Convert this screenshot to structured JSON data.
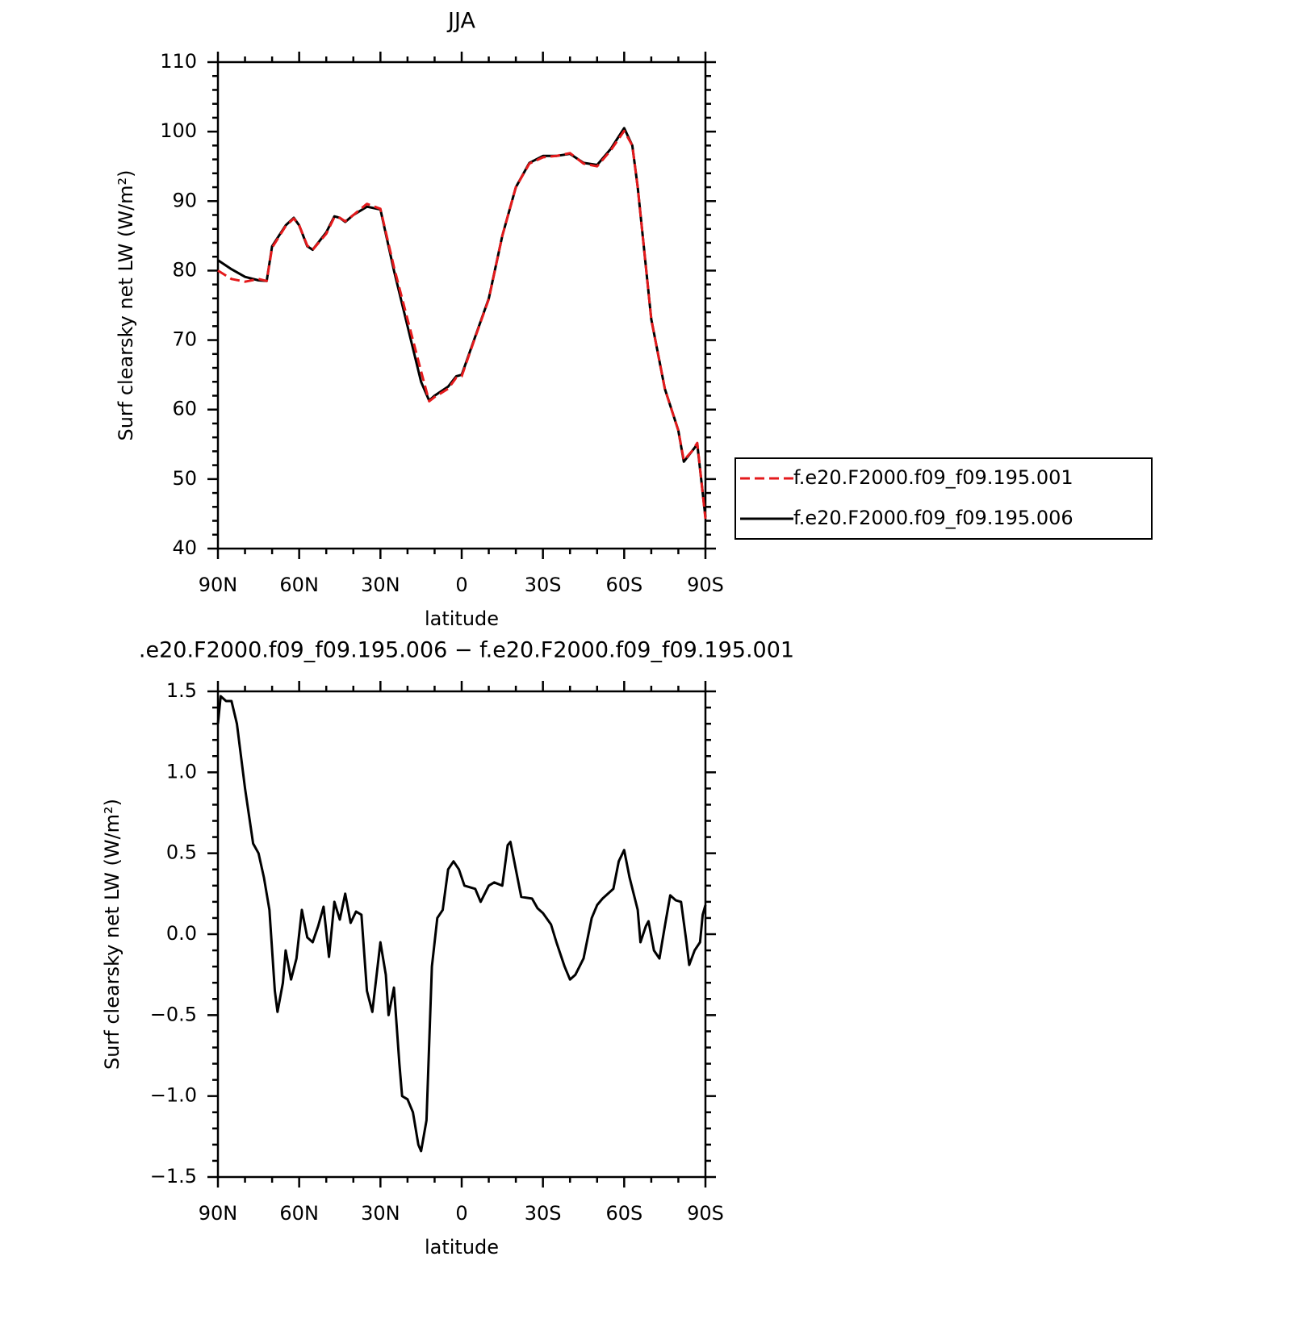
{
  "chart_data": [
    {
      "type": "line",
      "title": "JJA",
      "x_label": "latitude",
      "y_label": "Surf clearsky net LW (W/m²)",
      "x": [
        90,
        85,
        80,
        75,
        72,
        70,
        65,
        62,
        60,
        57,
        55,
        50,
        47,
        45,
        43,
        40,
        35,
        30,
        25,
        20,
        15,
        12,
        10,
        5,
        2,
        0,
        -5,
        -10,
        -15,
        -20,
        -25,
        -30,
        -35,
        -40,
        -45,
        -50,
        -55,
        -60,
        -63,
        -65,
        -70,
        -75,
        -80,
        -82,
        -85,
        -87,
        -90
      ],
      "series": [
        {
          "name": "f.e20.F2000.f09_f09.195.001",
          "color": "#e41a1c",
          "dash": true,
          "values": [
            80,
            78.8,
            78.4,
            78.8,
            78.5,
            83.3,
            86.4,
            87.5,
            86.5,
            83.6,
            83,
            85.3,
            87.7,
            87.6,
            87.1,
            88,
            89.6,
            88.9,
            80.5,
            73,
            65.5,
            61.2,
            61.8,
            63,
            64.6,
            64.8,
            70.4,
            75.9,
            85,
            92,
            95.4,
            96.3,
            96.5,
            96.9,
            95.4,
            95,
            97.3,
            100.1,
            98,
            92,
            73,
            63,
            57,
            52.7,
            54,
            55.2,
            44.3
          ]
        },
        {
          "name": "f.e20.F2000.f09_f09.195.006",
          "color": "#000000",
          "dash": false,
          "values": [
            81.5,
            80.2,
            79.1,
            78.6,
            78.5,
            83.5,
            86.5,
            87.6,
            86.5,
            83.5,
            83,
            85.5,
            87.8,
            87.6,
            87,
            88,
            89.2,
            88.8,
            80,
            72,
            64,
            61.3,
            62,
            63.3,
            64.8,
            65,
            70.5,
            76,
            85,
            92,
            95.5,
            96.5,
            96.5,
            96.8,
            95.5,
            95.2,
            97.5,
            100.5,
            98,
            92,
            73,
            63,
            57,
            52.5,
            54,
            55,
            44.5
          ]
        }
      ],
      "xlim": [
        90,
        -90
      ],
      "xticks": [
        {
          "value": 90,
          "label": "90N"
        },
        {
          "value": 60,
          "label": "60N"
        },
        {
          "value": 30,
          "label": "30N"
        },
        0,
        {
          "value": -30,
          "label": "30S"
        },
        {
          "value": -60,
          "label": "60S"
        },
        {
          "value": -90,
          "label": "90S"
        }
      ],
      "ylim": [
        40,
        110
      ],
      "yticks": [
        40,
        50,
        60,
        70,
        80,
        90,
        100,
        110
      ],
      "legend": "right"
    },
    {
      "type": "line",
      "title": ".e20.F2000.f09_f09.195.006 − f.e20.F2000.f09_f09.195.001",
      "x_label": "latitude",
      "y_label": "Surf clearsky net LW (W/m²)",
      "x": [
        90,
        89,
        87,
        85,
        83,
        80,
        77,
        75,
        73,
        71,
        69,
        68,
        66,
        65,
        63,
        61,
        59,
        57,
        55,
        53,
        51,
        49,
        47,
        45,
        43,
        41,
        39,
        37,
        35,
        33,
        30,
        28,
        27,
        25,
        23,
        22,
        20,
        18,
        16,
        15,
        13,
        11,
        9,
        7,
        5,
        3,
        1,
        -1,
        -5,
        -7,
        -10,
        -12,
        -15,
        -17,
        -18,
        -20,
        -22,
        -26,
        -28,
        -30,
        -33,
        -35,
        -38,
        -40,
        -42,
        -45,
        -48,
        -50,
        -52,
        -56,
        -58,
        -60,
        -62,
        -65,
        -66,
        -68,
        -69,
        -71,
        -73,
        -75,
        -77,
        -79,
        -81,
        -83,
        -84,
        -86,
        -88,
        -89,
        -90
      ],
      "values": [
        1.3,
        1.47,
        1.44,
        1.44,
        1.3,
        0.9,
        0.56,
        0.5,
        0.35,
        0.15,
        -0.35,
        -0.48,
        -0.3,
        -0.1,
        -0.28,
        -0.15,
        0.15,
        -0.02,
        -0.05,
        0.05,
        0.17,
        -0.14,
        0.2,
        0.09,
        0.25,
        0.07,
        0.14,
        0.12,
        -0.35,
        -0.48,
        -0.05,
        -0.25,
        -0.5,
        -0.33,
        -0.8,
        -1.0,
        -1.02,
        -1.1,
        -1.3,
        -1.34,
        -1.15,
        -0.2,
        0.1,
        0.15,
        0.4,
        0.45,
        0.4,
        0.3,
        0.28,
        0.2,
        0.3,
        0.32,
        0.3,
        0.55,
        0.57,
        0.4,
        0.23,
        0.22,
        0.16,
        0.13,
        0.06,
        -0.05,
        -0.2,
        -0.28,
        -0.25,
        -0.15,
        0.1,
        0.18,
        0.22,
        0.28,
        0.45,
        0.52,
        0.35,
        0.15,
        -0.05,
        0.05,
        0.08,
        -0.1,
        -0.15,
        0.05,
        0.24,
        0.21,
        0.2,
        -0.05,
        -0.19,
        -0.1,
        -0.05,
        0.12,
        0.18
      ],
      "color": "#000000",
      "xlim": [
        90,
        -90
      ],
      "xticks": [
        {
          "value": 90,
          "label": "90N"
        },
        {
          "value": 60,
          "label": "60N"
        },
        {
          "value": 30,
          "label": "30N"
        },
        0,
        {
          "value": -30,
          "label": "30S"
        },
        {
          "value": -60,
          "label": "60S"
        },
        {
          "value": -90,
          "label": "90S"
        }
      ],
      "ylim": [
        -1.5,
        1.5
      ],
      "yticks": [
        {
          "value": -1.5,
          "label": "−1.5"
        },
        {
          "value": -1,
          "label": "−1.0"
        },
        {
          "value": -0.5,
          "label": "−0.5"
        },
        {
          "value": 0,
          "label": "0.0"
        },
        0.5,
        {
          "value": 1,
          "label": "1.0"
        },
        1.5
      ]
    }
  ]
}
